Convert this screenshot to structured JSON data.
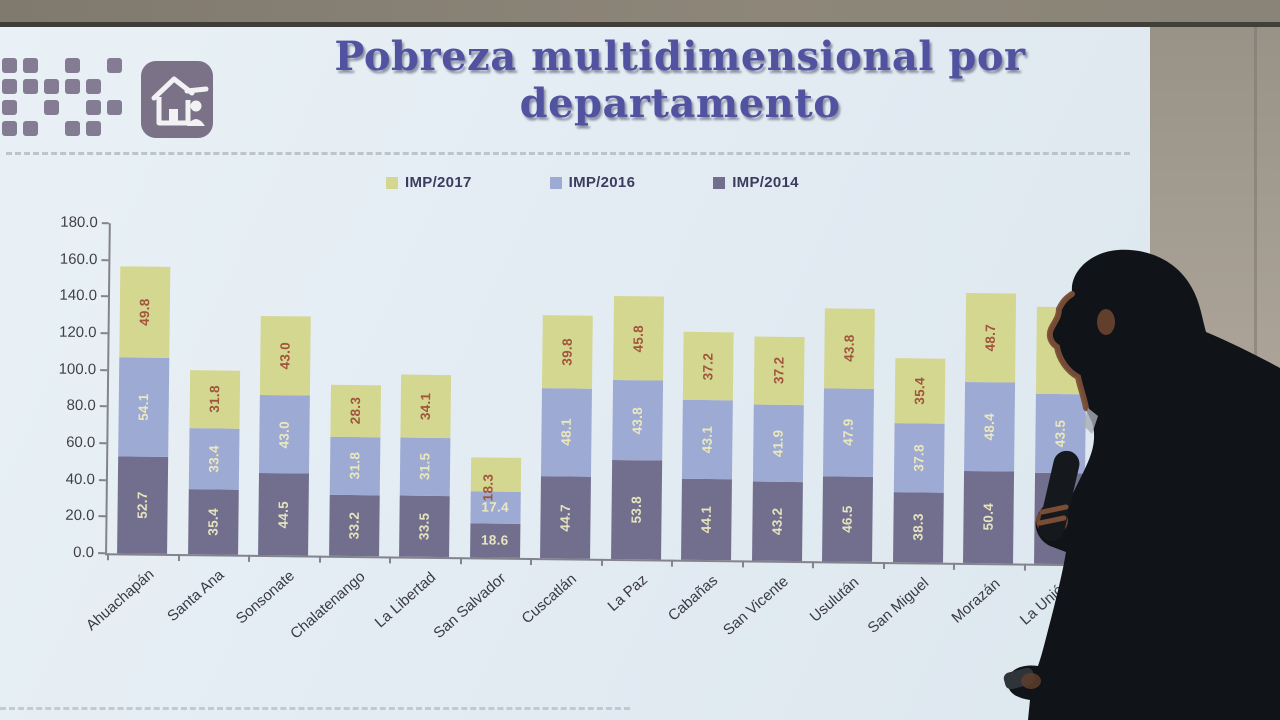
{
  "scene": {
    "description": "Photo of a presenter silhouetted in front of a projected slide",
    "slide_bg": "#e4edf3",
    "top_strip_color": "#847d72",
    "wall_color": "#a39b8f"
  },
  "logo": {
    "color": "#7a7289",
    "grid": [
      [
        1,
        1,
        0,
        1,
        0,
        1
      ],
      [
        1,
        1,
        1,
        1,
        1,
        0
      ],
      [
        1,
        0,
        1,
        0,
        1,
        1
      ],
      [
        1,
        1,
        0,
        1,
        1,
        0
      ]
    ]
  },
  "house_icon": {
    "bg": "#7b7287",
    "glyph": "house-with-person"
  },
  "title": {
    "line1": "Pobreza multidimensional por",
    "line2": "departamento",
    "color": "#5153a0"
  },
  "legend": [
    {
      "label": "IMP/2017",
      "color": "#d4d790"
    },
    {
      "label": "IMP/2016",
      "color": "#9daad3"
    },
    {
      "label": "IMP/2014",
      "color": "#716f8d"
    }
  ],
  "chart_data": {
    "type": "bar",
    "stacked": true,
    "title": "Pobreza multidimensional por departamento",
    "xlabel": "",
    "ylabel": "",
    "ylim": [
      0,
      180
    ],
    "ytick_step": 20,
    "ytick_format": "one_decimal",
    "grid": false,
    "legend_position": "top",
    "categories": [
      "Ahuachapán",
      "Santa Ana",
      "Sonsonate",
      "Chalatenango",
      "La Libertad",
      "San Salvador",
      "Cuscatlán",
      "La Paz",
      "Cabañas",
      "San Vicente",
      "Usulután",
      "San Miguel",
      "Morazán",
      "La Unión"
    ],
    "series": [
      {
        "name": "IMP/2014",
        "stack_order": 0,
        "color": "#716f8d",
        "label_color": "#e7e3bd",
        "values": [
          52.7,
          35.4,
          44.5,
          33.2,
          33.5,
          18.6,
          44.7,
          53.8,
          44.1,
          43.2,
          46.5,
          38.3,
          50.4,
          null
        ]
      },
      {
        "name": "IMP/2016",
        "stack_order": 1,
        "color": "#9daad3",
        "label_color": "#ece8bb",
        "values": [
          54.1,
          33.4,
          43.0,
          31.8,
          31.5,
          17.4,
          48.1,
          43.8,
          43.1,
          41.9,
          47.9,
          37.8,
          48.4,
          43.5
        ]
      },
      {
        "name": "IMP/2017",
        "stack_order": 2,
        "color": "#d4d790",
        "label_color": "#a0543c",
        "values": [
          49.8,
          31.8,
          43.0,
          28.3,
          34.1,
          18.3,
          39.8,
          45.8,
          37.2,
          37.2,
          43.8,
          35.4,
          48.7,
          null
        ]
      }
    ],
    "occlusion_note": "La Unión values for IMP/2014 and IMP/2017 are hidden behind the presenter",
    "occluded_render_heights": {
      "IMP/2014": 49.5,
      "IMP/2017": 47.0
    }
  },
  "axis": {
    "label_color": "#3f3f4a",
    "line_color": "#83838d"
  }
}
